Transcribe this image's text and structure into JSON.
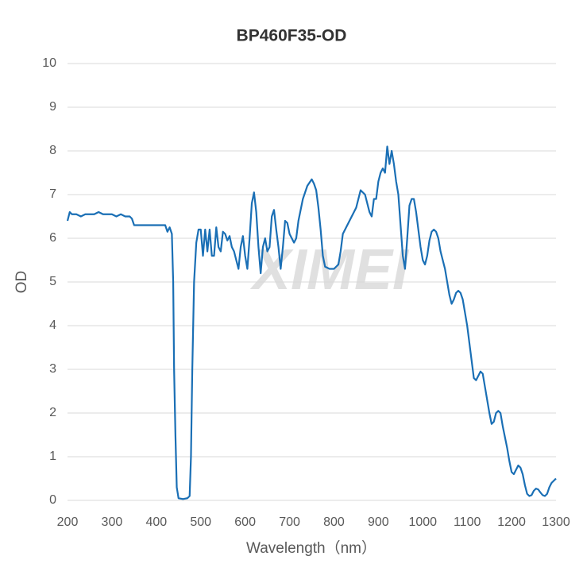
{
  "chart_data": {
    "type": "line",
    "title": "BP460F35-OD",
    "watermark": "XIMEI",
    "x_label": "Wavelength（nm）",
    "y_label": "OD",
    "xlim": [
      200,
      1300
    ],
    "xticks": [
      200,
      300,
      400,
      500,
      600,
      700,
      800,
      900,
      1000,
      1100,
      1200,
      1300
    ],
    "ylim": [
      0,
      10
    ],
    "yticks": [
      0,
      1,
      2,
      3,
      4,
      5,
      6,
      7,
      8,
      9,
      10
    ],
    "grid": true,
    "series": [
      {
        "name": "OD",
        "color": "#1a6fb5",
        "x": [
          200,
          205,
          210,
          220,
          230,
          240,
          250,
          260,
          270,
          280,
          290,
          300,
          310,
          320,
          330,
          340,
          345,
          350,
          360,
          370,
          380,
          390,
          400,
          410,
          420,
          425,
          430,
          435,
          438,
          440,
          443,
          446,
          450,
          460,
          470,
          475,
          478,
          481,
          485,
          490,
          495,
          500,
          505,
          510,
          515,
          520,
          525,
          530,
          535,
          540,
          545,
          550,
          555,
          560,
          565,
          570,
          575,
          580,
          585,
          590,
          595,
          600,
          605,
          610,
          615,
          620,
          625,
          630,
          635,
          640,
          645,
          650,
          655,
          660,
          665,
          670,
          675,
          680,
          685,
          690,
          695,
          700,
          710,
          715,
          720,
          730,
          740,
          750,
          755,
          760,
          765,
          770,
          775,
          780,
          790,
          800,
          810,
          815,
          820,
          830,
          840,
          850,
          860,
          870,
          875,
          880,
          885,
          890,
          895,
          900,
          905,
          910,
          915,
          920,
          925,
          930,
          935,
          940,
          945,
          950,
          955,
          960,
          965,
          970,
          975,
          980,
          985,
          990,
          995,
          1000,
          1005,
          1010,
          1015,
          1020,
          1025,
          1030,
          1035,
          1040,
          1050,
          1055,
          1060,
          1065,
          1070,
          1075,
          1080,
          1085,
          1090,
          1100,
          1110,
          1115,
          1120,
          1125,
          1130,
          1135,
          1140,
          1150,
          1155,
          1160,
          1165,
          1170,
          1175,
          1180,
          1190,
          1195,
          1200,
          1205,
          1210,
          1215,
          1220,
          1225,
          1230,
          1235,
          1240,
          1245,
          1250,
          1255,
          1260,
          1265,
          1270,
          1275,
          1280,
          1285,
          1290,
          1300
        ],
        "values": [
          6.4,
          6.6,
          6.55,
          6.55,
          6.5,
          6.55,
          6.55,
          6.55,
          6.6,
          6.55,
          6.55,
          6.55,
          6.5,
          6.55,
          6.5,
          6.5,
          6.45,
          6.3,
          6.3,
          6.3,
          6.3,
          6.3,
          6.3,
          6.3,
          6.3,
          6.15,
          6.25,
          6.1,
          5.0,
          3.0,
          1.5,
          0.3,
          0.05,
          0.03,
          0.05,
          0.1,
          1.0,
          3.0,
          5.0,
          5.9,
          6.2,
          6.2,
          5.6,
          6.2,
          5.7,
          6.2,
          5.6,
          5.6,
          6.25,
          5.8,
          5.7,
          6.15,
          6.1,
          5.95,
          6.05,
          5.8,
          5.7,
          5.5,
          5.3,
          5.8,
          6.05,
          5.6,
          5.3,
          6.0,
          6.8,
          7.05,
          6.6,
          5.8,
          5.2,
          5.8,
          6.0,
          5.7,
          5.8,
          6.5,
          6.65,
          6.2,
          5.8,
          5.3,
          5.8,
          6.4,
          6.35,
          6.1,
          5.9,
          6.0,
          6.4,
          6.9,
          7.2,
          7.35,
          7.25,
          7.1,
          6.7,
          6.2,
          5.6,
          5.35,
          5.3,
          5.3,
          5.4,
          5.7,
          6.1,
          6.3,
          6.5,
          6.7,
          7.1,
          7.0,
          6.8,
          6.6,
          6.5,
          6.9,
          6.9,
          7.3,
          7.5,
          7.6,
          7.5,
          8.1,
          7.7,
          8.0,
          7.7,
          7.3,
          7.0,
          6.3,
          5.6,
          5.3,
          6.0,
          6.75,
          6.9,
          6.9,
          6.6,
          6.2,
          5.8,
          5.5,
          5.4,
          5.6,
          5.95,
          6.15,
          6.2,
          6.15,
          6.0,
          5.7,
          5.3,
          5.0,
          4.7,
          4.5,
          4.6,
          4.75,
          4.8,
          4.75,
          4.6,
          4.0,
          3.2,
          2.8,
          2.75,
          2.85,
          2.95,
          2.9,
          2.6,
          2.0,
          1.75,
          1.8,
          2.0,
          2.05,
          2.0,
          1.7,
          1.2,
          0.9,
          0.65,
          0.6,
          0.7,
          0.8,
          0.75,
          0.6,
          0.35,
          0.15,
          0.1,
          0.12,
          0.22,
          0.27,
          0.25,
          0.18,
          0.12,
          0.1,
          0.15,
          0.3,
          0.4,
          0.5
        ]
      }
    ]
  }
}
